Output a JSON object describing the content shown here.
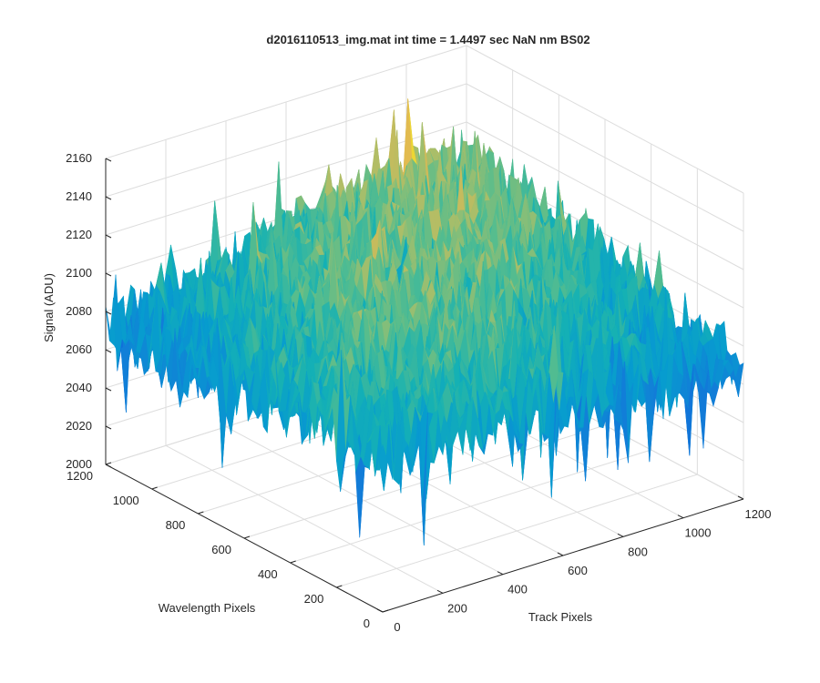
{
  "chart_data": {
    "type": "surface",
    "title": "d2016110513_img.mat int time = 1.4497 sec  NaN nm BS02",
    "xlabel": "Track Pixels",
    "ylabel": "Wavelength Pixels",
    "zlabel": "Signal (ADU)",
    "xlim": [
      0,
      1200
    ],
    "ylim": [
      0,
      1200
    ],
    "zlim": [
      2000,
      2160
    ],
    "x_ticks": [
      "0",
      "200",
      "400",
      "600",
      "800",
      "1000",
      "1200"
    ],
    "y_ticks": [
      "0",
      "200",
      "400",
      "600",
      "800",
      "1000",
      "1200"
    ],
    "z_ticks": [
      "2000",
      "2020",
      "2040",
      "2060",
      "2080",
      "2100",
      "2120",
      "2140",
      "2160"
    ],
    "grid": true,
    "colormap": "parula",
    "colors": {
      "low": "#0072BD",
      "mid": "#1FB3A6",
      "high": "#EDB120",
      "grid": "#DDDDDD",
      "axis": "#262626"
    },
    "surface_summary": {
      "min_signal_approx": 2005,
      "max_signal_approx": 2155,
      "typical_level": 2085,
      "shape": "noisy surface with higher values along the far and left edges and a saddle-like dip toward the front corner"
    }
  }
}
